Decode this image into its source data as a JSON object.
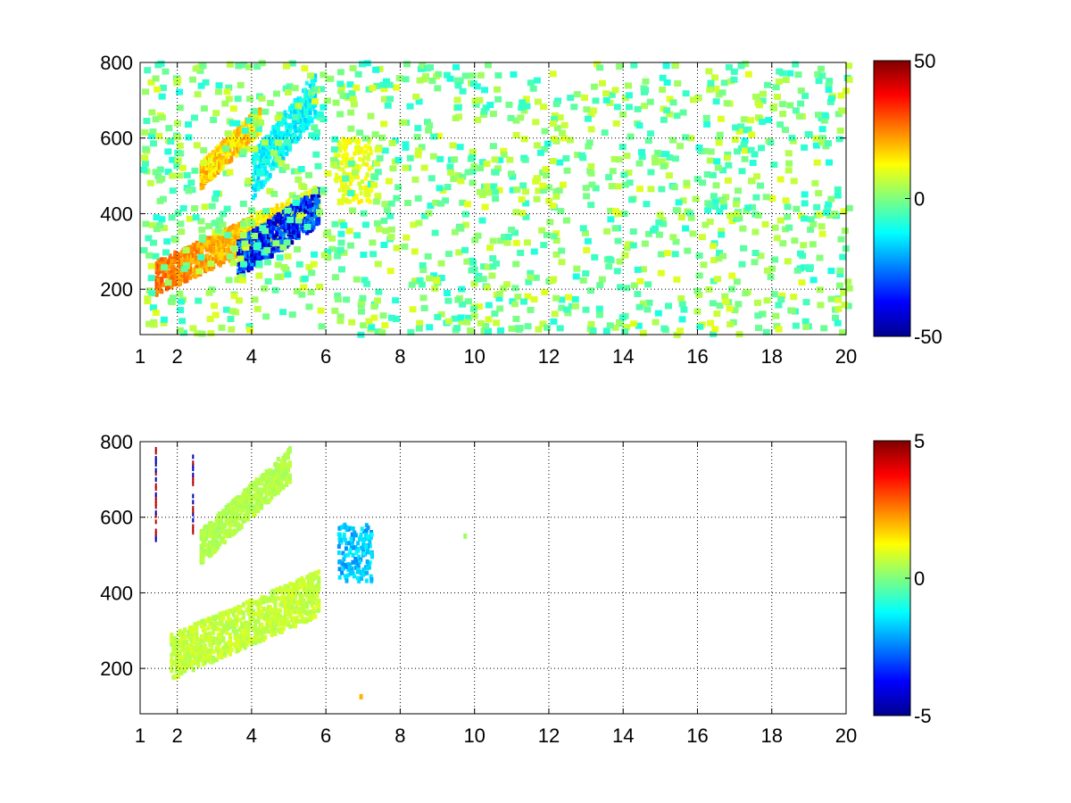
{
  "figure": {
    "background": "#ffffff",
    "colormap": "jet",
    "colors": {
      "nan": "#ffffff",
      "axis": "#000000",
      "grid": "#000000"
    }
  },
  "chart_data": [
    {
      "type": "heatmap",
      "title": "",
      "xlabel": "",
      "ylabel": "",
      "xlim": [
        1,
        20
      ],
      "ylim": [
        80,
        800
      ],
      "xticks": [
        "1",
        "2",
        "4",
        "6",
        "8",
        "10",
        "12",
        "14",
        "16",
        "18",
        "20"
      ],
      "xtick_values": [
        1,
        2,
        4,
        6,
        8,
        10,
        12,
        14,
        16,
        18,
        20
      ],
      "yticks": [
        "200",
        "400",
        "600",
        "800"
      ],
      "ytick_values": [
        200,
        400,
        600,
        800
      ],
      "grid": true,
      "clim": [
        -50,
        50
      ],
      "colorbar_ticks": [
        "50",
        "0",
        "-50"
      ],
      "colorbar_tick_values": [
        50,
        0,
        -50
      ],
      "features": [
        {
          "kind": "band",
          "x_range": [
            1.4,
            5.8
          ],
          "y_at_x_start": 230,
          "y_at_x_end": 430,
          "width": 90,
          "value": 30,
          "note_value_gradient": "positive lower-left, negative toward upper-right"
        },
        {
          "kind": "band",
          "x_range": [
            2.6,
            4.2
          ],
          "y_at_x_start": 500,
          "y_at_x_end": 650,
          "width": 70,
          "value": 20
        },
        {
          "kind": "band",
          "x_range": [
            3.6,
            5.8
          ],
          "y_at_x_start": 280,
          "y_at_x_end": 420,
          "width": 100,
          "value": -40
        },
        {
          "kind": "band",
          "x_range": [
            4.0,
            5.7
          ],
          "y_at_x_start": 500,
          "y_at_x_end": 720,
          "width": 120,
          "value": -15
        },
        {
          "kind": "blob",
          "x_range": [
            6.2,
            7.2
          ],
          "y_range": [
            430,
            600
          ],
          "value": 12
        },
        {
          "kind": "sparse_noise",
          "x_range": [
            1,
            20
          ],
          "y_range": [
            80,
            800
          ],
          "value_range": [
            -10,
            10
          ]
        }
      ]
    },
    {
      "type": "heatmap",
      "title": "",
      "xlabel": "",
      "ylabel": "",
      "xlim": [
        1,
        20
      ],
      "ylim": [
        80,
        800
      ],
      "xticks": [
        "1",
        "2",
        "4",
        "6",
        "8",
        "10",
        "12",
        "14",
        "16",
        "18",
        "20"
      ],
      "xtick_values": [
        1,
        2,
        4,
        6,
        8,
        10,
        12,
        14,
        16,
        18,
        20
      ],
      "yticks": [
        "200",
        "400",
        "600",
        "800"
      ],
      "ytick_values": [
        200,
        400,
        600,
        800
      ],
      "grid": true,
      "clim": [
        -5,
        5
      ],
      "colorbar_ticks": [
        "5",
        "0",
        "-5"
      ],
      "colorbar_tick_values": [
        5,
        0,
        -5
      ],
      "features": [
        {
          "kind": "band",
          "x_range": [
            1.8,
            5.8
          ],
          "y_at_x_start": 230,
          "y_at_x_end": 400,
          "width": 120,
          "value": 0.8
        },
        {
          "kind": "band",
          "x_range": [
            2.6,
            5.0
          ],
          "y_at_x_start": 520,
          "y_at_x_end": 740,
          "width": 90,
          "value": 0.6
        },
        {
          "kind": "blob",
          "x_range": [
            6.3,
            7.2
          ],
          "y_range": [
            430,
            580
          ],
          "value": -2.0
        },
        {
          "kind": "streak",
          "x": 1.4,
          "y_range": [
            540,
            780
          ],
          "value": 4.5
        },
        {
          "kind": "streak",
          "x": 2.4,
          "y_range": [
            560,
            760
          ],
          "value": 4.5
        },
        {
          "kind": "dot",
          "x": 9.7,
          "y": 550,
          "value": 0.3
        },
        {
          "kind": "dot",
          "x": 6.9,
          "y": 125,
          "value": 2.0
        }
      ]
    }
  ]
}
